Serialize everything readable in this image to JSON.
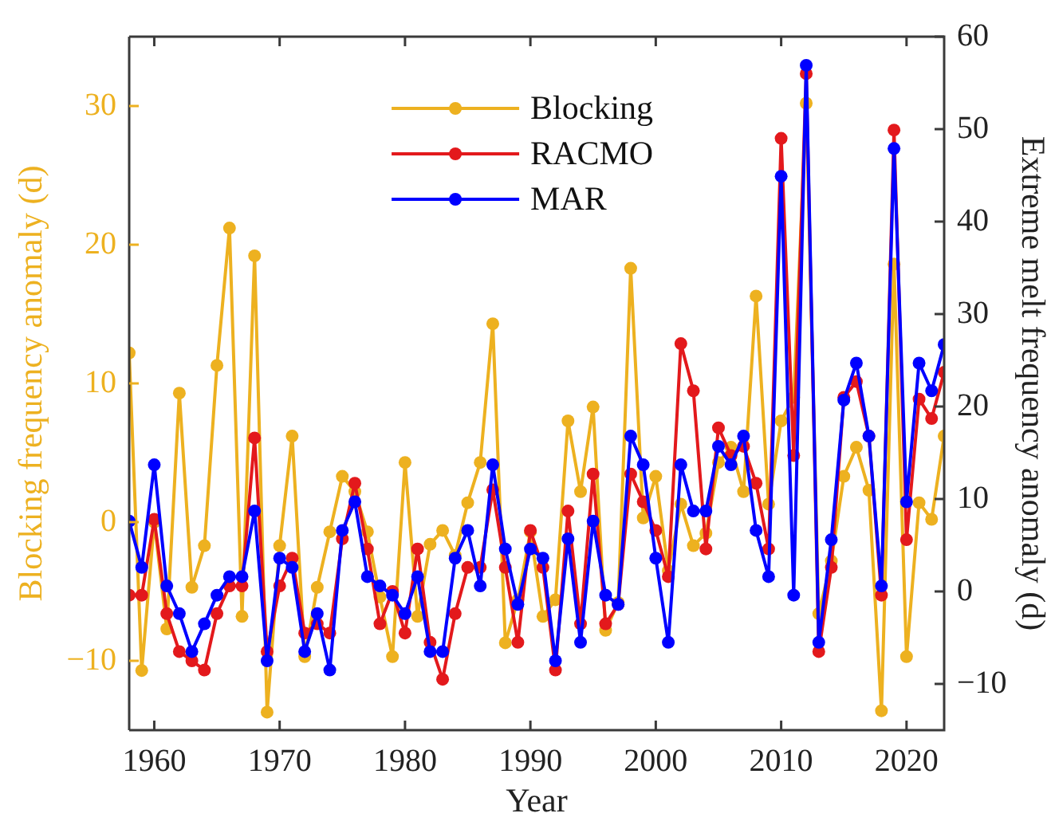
{
  "chart_data": {
    "type": "line",
    "xlabel": "Year",
    "ylabel": "Blocking frequency anomaly (d)",
    "y2label": "Extreme melt frequency anomaly (d)",
    "x": [
      1958,
      1959,
      1960,
      1961,
      1962,
      1963,
      1964,
      1965,
      1966,
      1967,
      1968,
      1969,
      1970,
      1971,
      1972,
      1973,
      1974,
      1975,
      1976,
      1977,
      1978,
      1979,
      1980,
      1981,
      1982,
      1983,
      1984,
      1985,
      1986,
      1987,
      1988,
      1989,
      1990,
      1991,
      1992,
      1993,
      1994,
      1995,
      1996,
      1997,
      1998,
      1999,
      2000,
      2001,
      2002,
      2003,
      2004,
      2005,
      2006,
      2007,
      2008,
      2009,
      2010,
      2011,
      2012,
      2013,
      2014,
      2015,
      2016,
      2017,
      2018,
      2019,
      2020,
      2021,
      2022,
      2023
    ],
    "series": [
      {
        "name": "Blocking",
        "color": "#edb120",
        "values": [
          12.2,
          -10.7,
          0,
          -7.7,
          9.3,
          -4.7,
          -1.7,
          11.3,
          21.2,
          -6.8,
          19.2,
          -13.7,
          -1.7,
          6.2,
          -9.7,
          -4.7,
          -0.7,
          3.3,
          2.2,
          -0.7,
          -5.4,
          -9.7,
          4.3,
          -6.8,
          -1.6,
          -0.6,
          -2.4,
          1.4,
          4.3,
          14.3,
          -8.7,
          -5.6,
          -0.7,
          -6.8,
          -5.6,
          7.3,
          2.2,
          8.3,
          -7.8,
          -5.8,
          18.3,
          0.3,
          3.3,
          -3.5,
          1.3,
          -1.7,
          -0.8,
          4.3,
          5.4,
          2.2,
          16.3,
          1.3,
          7.3,
          9,
          30.2,
          -6.6,
          -2.8,
          3.3,
          5.4,
          2.3,
          -13.6,
          18.6,
          -9.7,
          1.4,
          0.2,
          6.2
        ]
      },
      {
        "name": "RACMO",
        "color": "#e3191c",
        "axis": "y2",
        "values": [
          -0.4,
          -0.4,
          7.8,
          -2.4,
          -6.5,
          -7.5,
          -8.5,
          -2.4,
          0.6,
          0.6,
          16.6,
          -6.5,
          0.6,
          3.6,
          -4.5,
          -3.5,
          -4.5,
          5.7,
          11.7,
          4.6,
          -3.5,
          0,
          -4.5,
          4.6,
          -5.5,
          -9.5,
          -2.4,
          2.6,
          2.6,
          11,
          2.6,
          -5.5,
          6.6,
          2.6,
          -8.5,
          8.7,
          -3.5,
          12.7,
          -3.5,
          -1.4,
          12.7,
          9.7,
          6.6,
          1.6,
          26.8,
          21.7,
          4.6,
          17.7,
          14.7,
          15.7,
          11.7,
          4.6,
          49,
          14.7,
          56,
          -6.5,
          2.6,
          21,
          22.7,
          16.8,
          -0.4,
          49.9,
          5.6,
          20.8,
          18.7,
          23.7
        ]
      },
      {
        "name": "MAR",
        "color": "#0000ff",
        "axis": "y2",
        "values": [
          7.6,
          2.6,
          13.7,
          0.6,
          -2.4,
          -6.5,
          -3.5,
          -0.4,
          1.6,
          1.6,
          8.7,
          -7.5,
          3.6,
          2.6,
          -6.5,
          -2.4,
          -8.5,
          6.6,
          9.7,
          1.6,
          0.6,
          -0.4,
          -2.4,
          1.6,
          -6.5,
          -6.5,
          3.6,
          6.6,
          0.6,
          13.7,
          4.6,
          -1.4,
          4.6,
          3.6,
          -7.5,
          5.7,
          -5.5,
          7.6,
          -0.4,
          -1.4,
          16.8,
          13.7,
          3.6,
          -5.5,
          13.7,
          8.7,
          8.7,
          15.7,
          13.7,
          16.8,
          6.6,
          1.6,
          44.9,
          -0.4,
          56.9,
          -5.5,
          5.6,
          20.7,
          24.7,
          16.8,
          0.6,
          47.9,
          9.7,
          24.7,
          21.7,
          26.7
        ]
      }
    ],
    "xlim": [
      1958,
      2023
    ],
    "xticks": [
      1960,
      1970,
      1980,
      1990,
      2000,
      2010,
      2020
    ],
    "ylim": [
      -15,
      35
    ],
    "yticks": [
      -10,
      0,
      10,
      20,
      30
    ],
    "y2lim": [
      -15,
      60
    ],
    "y2ticks": [
      -10,
      0,
      10,
      20,
      30,
      40,
      50,
      60
    ],
    "legend": "top",
    "marker": "circle"
  }
}
